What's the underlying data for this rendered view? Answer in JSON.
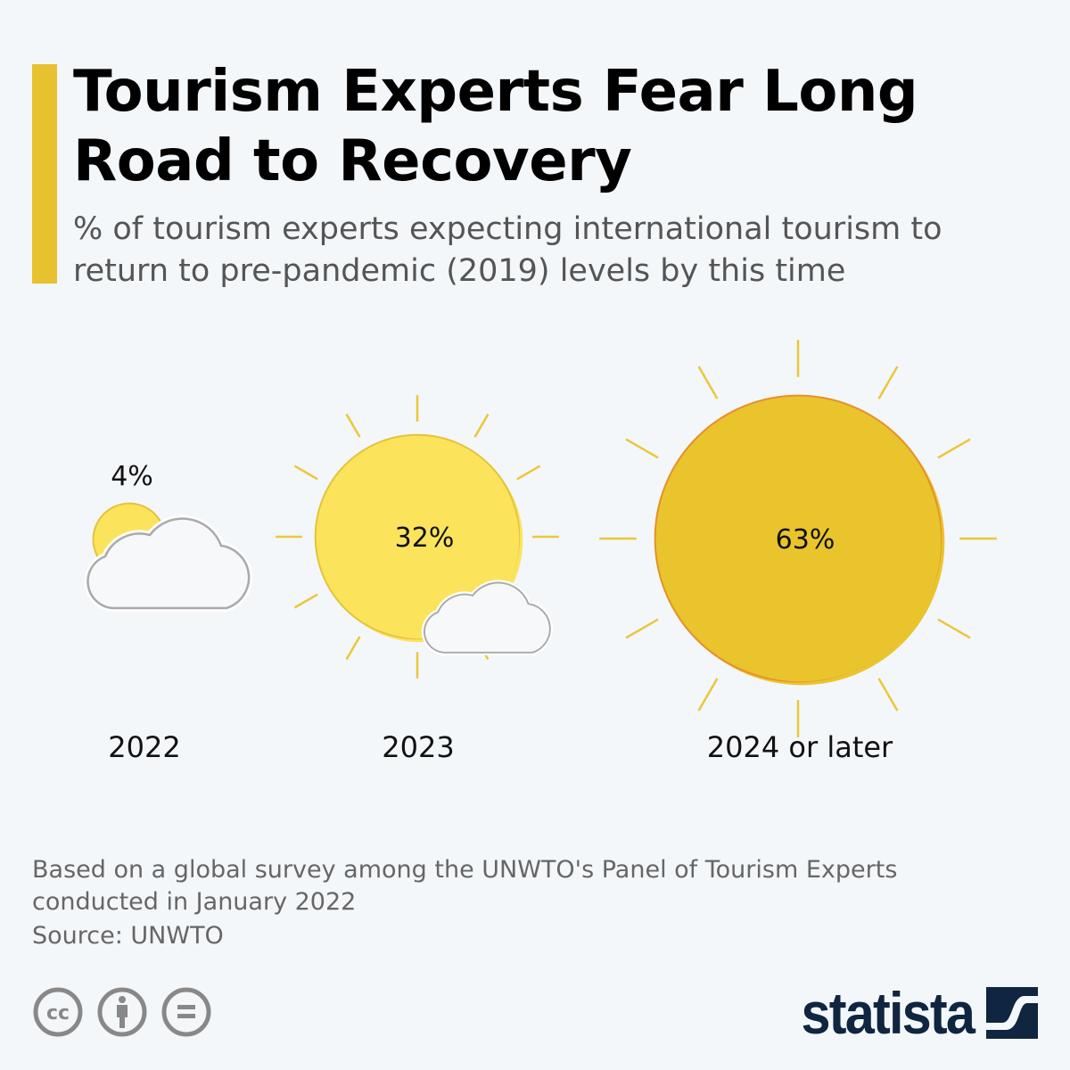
{
  "header": {
    "title": "Tourism Experts Fear Long Road to Recovery",
    "subtitle": "% of tourism experts expecting international tourism to return to pre-pandemic (2019) levels by this time"
  },
  "chart_data": {
    "type": "bubble",
    "title": "Tourism Experts Fear Long Road to Recovery",
    "unit": "%",
    "categories": [
      "2022",
      "2023",
      "2024 or later"
    ],
    "values": [
      4,
      32,
      63
    ],
    "labels": [
      "4%",
      "32%",
      "63%"
    ],
    "colors": [
      "#fbe45c",
      "#fbe45c",
      "#e9c42d"
    ]
  },
  "footer": {
    "note": "Based on a global survey among the UNWTO's Panel of Tourism Experts conducted in January 2022",
    "source": "Source: UNWTO",
    "brand": "statista"
  },
  "icons": [
    "cc-icon",
    "attribution-icon",
    "no-derivatives-icon",
    "statista-logo-icon"
  ]
}
